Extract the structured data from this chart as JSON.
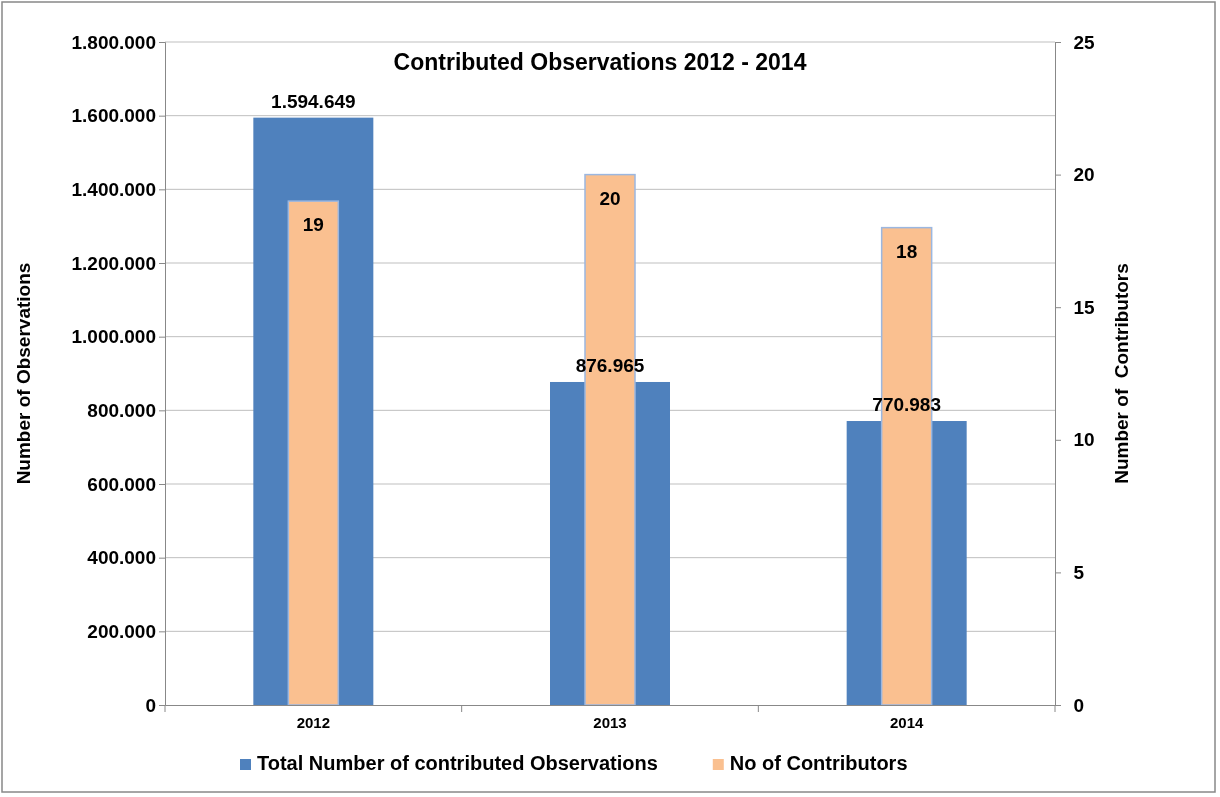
{
  "chart_data": {
    "type": "bar",
    "title": "Contributed Observations 2012 - 2014",
    "ylabel": "Number of Observations",
    "y2label": "Number of  Contributors",
    "categories": [
      "2012",
      "2013",
      "2014"
    ],
    "series": [
      {
        "name": "Total Number of contributed Observations",
        "color": "#4f81bd",
        "values": [
          1594649,
          876965,
          770983
        ],
        "value_labels": [
          "1.594.649",
          "876.965",
          "770.983"
        ]
      },
      {
        "name": "No of Contributors",
        "color": "#fac090",
        "values": [
          19,
          20,
          18
        ],
        "axis": "y2",
        "value_labels": [
          "19",
          "20",
          "18"
        ]
      }
    ],
    "ylim": [
      0,
      1800000
    ],
    "yticks": [
      {
        "value": 0,
        "label": "0"
      },
      {
        "value": 200000,
        "label": "200.000"
      },
      {
        "value": 400000,
        "label": "400.000"
      },
      {
        "value": 600000,
        "label": "600.000"
      },
      {
        "value": 800000,
        "label": "800.000"
      },
      {
        "value": 1000000,
        "label": "1.000.000"
      },
      {
        "value": 1200000,
        "label": "1.200.000"
      },
      {
        "value": 1400000,
        "label": "1.400.000"
      },
      {
        "value": 1600000,
        "label": "1.600.000"
      },
      {
        "value": 1800000,
        "label": "1.800.000"
      }
    ],
    "y2lim": [
      0,
      25
    ],
    "y2ticks": [
      0,
      5,
      10,
      15,
      20,
      25
    ],
    "grid": "y",
    "legend": "bottom"
  }
}
